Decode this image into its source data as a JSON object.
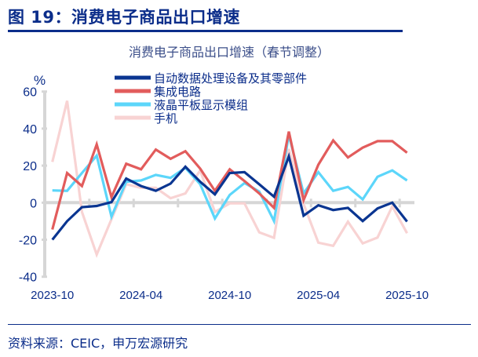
{
  "figure": {
    "title": "图 19：消费电子商品出口增速",
    "source": "资料来源：CEIC，申万宏源研究"
  },
  "chart_data": {
    "type": "line",
    "title": "消费电子商品出口增速（春节调整）",
    "ylabel": "%",
    "xlabel": "",
    "ylim": [
      -40,
      60
    ],
    "yticks": [
      60,
      40,
      20,
      0,
      -20,
      -40
    ],
    "x": [
      "2023-10",
      "2023-11",
      "2023-12",
      "2024-01",
      "2024-02",
      "2024-03",
      "2024-04",
      "2024-05",
      "2024-06",
      "2024-07",
      "2024-08",
      "2024-09",
      "2024-10",
      "2024-11",
      "2024-12",
      "2025-01",
      "2025-02",
      "2025-03",
      "2025-04",
      "2025-05",
      "2025-06",
      "2025-07",
      "2025-08",
      "2025-09",
      "2025-10"
    ],
    "xtick_labels": [
      "2023-10",
      "2024-04",
      "2024-10",
      "2025-04",
      "2025-10"
    ],
    "grid": false,
    "legend_position": "top-center",
    "series": [
      {
        "name": "自动数据处理设备及其零部件",
        "color": "#0a3591",
        "values": [
          -20,
          -10,
          -2.4,
          -1.8,
          0.3,
          13,
          9,
          6.4,
          10.3,
          19.4,
          11.3,
          4.5,
          16,
          16.5,
          9.9,
          3.2,
          25,
          -7,
          -1.4,
          -4,
          -2.8,
          -9.9,
          -3.1,
          0,
          -10.2
        ]
      },
      {
        "name": "集成电路",
        "color": "#e25c5c",
        "values": [
          -14.5,
          16,
          9,
          31.5,
          3,
          21,
          18,
          28.7,
          23.7,
          27.8,
          18.4,
          6.4,
          18,
          11.7,
          5,
          -2.8,
          38.4,
          1.4,
          20.5,
          33.6,
          24.4,
          29.7,
          33.2,
          33.2,
          27
        ]
      },
      {
        "name": "液晶平板显示模组",
        "color": "#5cd6fa",
        "values": [
          6.6,
          6.4,
          16,
          25.4,
          -7.5,
          11.3,
          12,
          15,
          13.4,
          18.8,
          10,
          -8.5,
          4.2,
          10.6,
          6,
          -9.9,
          36.7,
          5,
          16.5,
          6.4,
          8.5,
          1.8,
          14,
          17.4,
          12
        ]
      },
      {
        "name": "手机",
        "color": "#f8d3d3",
        "values": [
          22,
          55,
          -5,
          -28,
          -9,
          10,
          8,
          8,
          2.4,
          5,
          17.4,
          -5,
          -0.4,
          -0.4,
          -16,
          -19,
          29,
          -0.7,
          -21.6,
          -23.3,
          -10.3,
          -22,
          -18.8,
          -2,
          -16.5
        ]
      }
    ]
  }
}
